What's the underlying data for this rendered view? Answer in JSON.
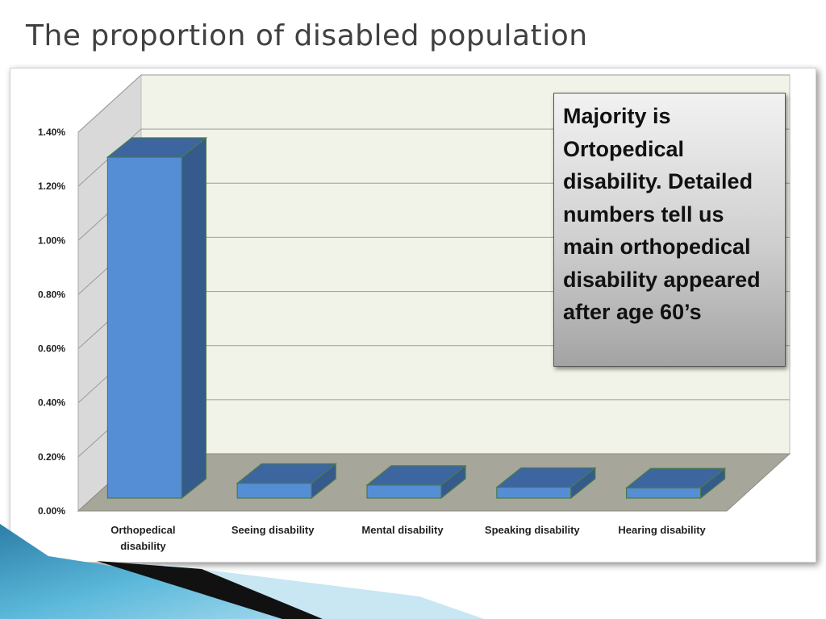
{
  "slide": {
    "title": "The proportion of disabled population"
  },
  "callout": {
    "text": "Majority is Ortopedical disability. Detailed numbers tell us main orthopedical disability appeared after age 60’s"
  },
  "chart_data": {
    "type": "bar",
    "categories": [
      [
        "Orthopedical",
        "disability"
      ],
      [
        "Seeing disability"
      ],
      [
        "Mental disability"
      ],
      [
        "Speaking disability"
      ],
      [
        "Hearing disability"
      ]
    ],
    "values": [
      1.26,
      0.055,
      0.048,
      0.04,
      0.038
    ],
    "value_unit": "%",
    "ylim": [
      0,
      1.4
    ],
    "yticks": [
      "0.00%",
      "0.20%",
      "0.40%",
      "0.60%",
      "0.80%",
      "1.00%",
      "1.20%",
      "1.40%"
    ],
    "grid": true,
    "bar_color": "#558ed5",
    "title": "",
    "xlabel": "",
    "ylabel": ""
  }
}
